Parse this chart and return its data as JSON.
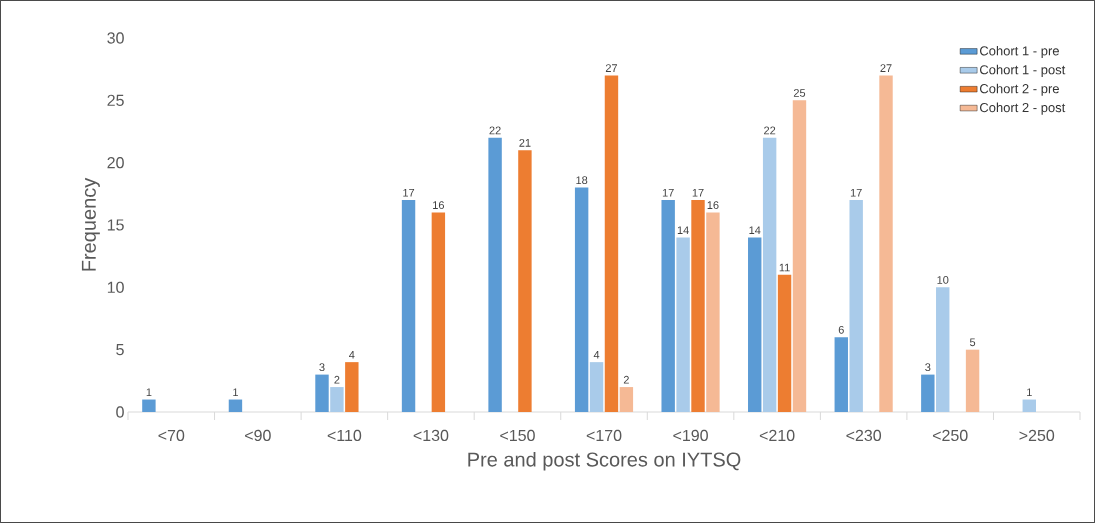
{
  "chart_data": {
    "type": "bar",
    "xlabel": "Pre and post Scores on IYTSQ",
    "ylabel": "Frequency",
    "categories": [
      "<70",
      "<90",
      "<110",
      "<130",
      "<150",
      "<170",
      "<190",
      "<210",
      "<230",
      "<250",
      ">250"
    ],
    "ylim": [
      0,
      30
    ],
    "yticks": [
      0,
      5,
      10,
      15,
      20,
      25,
      30
    ],
    "grid": false,
    "legend": "top right",
    "series": [
      {
        "name": "Cohort 1 - pre",
        "color": "#5b9bd5",
        "values": [
          1,
          1,
          3,
          17,
          22,
          18,
          17,
          14,
          6,
          3,
          0
        ],
        "value_labels": [
          "1",
          "1",
          "3",
          "17",
          "22",
          "18",
          "17",
          "14",
          "6",
          "3",
          null
        ]
      },
      {
        "name": "Cohort 1 - post",
        "color": "#a9cbea",
        "values": [
          0,
          0,
          2,
          0,
          0,
          4,
          14,
          22,
          17,
          10,
          1
        ],
        "value_labels": [
          null,
          null,
          "2",
          null,
          null,
          "4",
          "14",
          "22",
          "17",
          "10",
          "1"
        ]
      },
      {
        "name": "Cohort 2 - pre",
        "color": "#ed7d31",
        "values": [
          0,
          0,
          4,
          16,
          21,
          27,
          17,
          11,
          0,
          0,
          0
        ],
        "value_labels": [
          null,
          null,
          "4",
          "16",
          "21",
          "27",
          "17",
          "11",
          null,
          null,
          null
        ]
      },
      {
        "name": "Cohort 2 - post",
        "color": "#f5b995",
        "values": [
          0,
          0,
          0,
          0,
          0,
          2,
          16,
          25,
          27,
          5,
          0
        ],
        "value_labels": [
          null,
          null,
          null,
          null,
          null,
          "2",
          "16",
          "25",
          "27",
          "5",
          null
        ]
      }
    ]
  }
}
